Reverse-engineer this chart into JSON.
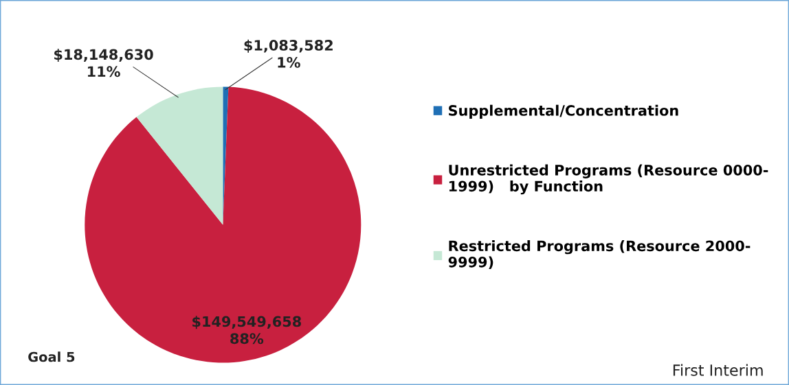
{
  "chart_data": {
    "type": "pie",
    "categories": [
      "Supplemental/Concentration",
      "Unrestricted Programs (Resource 0000-\n1999)   by Function",
      "Restricted Programs (Resource 2000-\n9999)"
    ],
    "values": [
      1083582,
      149549658,
      18148630
    ],
    "colors": [
      "#1f6fb5",
      "#c8203f",
      "#c5e8d5"
    ],
    "value_labels": [
      "$1,083,582\n1%",
      "$149,549,658\n88%",
      "$18,148,630\n11%"
    ],
    "legend": "right",
    "annotations": [
      "Goal 5",
      "First Interim"
    ]
  }
}
